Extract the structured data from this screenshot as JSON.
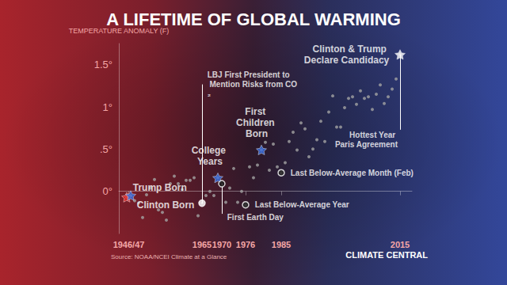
{
  "chart_data": {
    "type": "scatter",
    "title": "A LIFETIME OF GLOBAL WARMING",
    "y_label": "TEMPERATURE ANOMALY (F)",
    "source": "Source: NOAA/NCEI Climate at a Glance",
    "brand": "CLIMATE CENTRAL",
    "color": "#a3a3a3",
    "marker": "circle",
    "grid": false,
    "x": [
      1946,
      1947,
      1948,
      1949,
      1950,
      1951,
      1952,
      1953,
      1954,
      1955,
      1956,
      1957,
      1958,
      1959,
      1960,
      1961,
      1962,
      1963,
      1964,
      1965,
      1966,
      1967,
      1968,
      1969,
      1970,
      1971,
      1972,
      1973,
      1974,
      1975,
      1976,
      1977,
      1978,
      1979,
      1980,
      1981,
      1982,
      1983,
      1984,
      1985,
      1986,
      1987,
      1988,
      1989,
      1990,
      1991,
      1992,
      1993,
      1994,
      1995,
      1996,
      1997,
      1998,
      1999,
      2000,
      2001,
      2002,
      2003,
      2004,
      2005,
      2006,
      2007,
      2008,
      2009,
      2010,
      2011,
      2012,
      2013,
      2014,
      2015
    ],
    "values": [
      -0.07,
      -0.05,
      -0.11,
      -0.14,
      -0.31,
      -0.04,
      0.04,
      0.14,
      -0.22,
      -0.25,
      -0.34,
      0.09,
      0.18,
      0.09,
      0.02,
      0.13,
      0.13,
      0.16,
      -0.29,
      -0.14,
      -0.05,
      0,
      -0.05,
      0.16,
      0.09,
      -0.13,
      0.04,
      0.27,
      -0.13,
      0,
      -0.16,
      0.29,
      0.16,
      0.31,
      0.49,
      0.58,
      0.25,
      0.56,
      0.29,
      0.22,
      0.34,
      0.59,
      0.7,
      0.49,
      0.81,
      0.74,
      0.41,
      0.5,
      0.61,
      0.83,
      0.59,
      0.94,
      1.13,
      0.76,
      0.76,
      0.99,
      1.1,
      1.12,
      1.03,
      1.19,
      1.1,
      1.12,
      0.97,
      1.15,
      1.26,
      1.04,
      1.12,
      1.21,
      1.33,
      1.62
    ],
    "xlim": [
      1944,
      2018
    ],
    "xticks": [
      {
        "value": 1946.5,
        "label": "1946/47"
      },
      1965,
      1970,
      1976,
      1985,
      2015
    ],
    "ylim": [
      -0.5,
      1.75
    ],
    "yticks": [
      {
        "value": 0,
        "label": "0°"
      },
      {
        "value": 0.5,
        "label": ".5°"
      },
      {
        "value": 1,
        "label": "1°"
      },
      {
        "value": 1.5,
        "label": "1.5°"
      }
    ],
    "annotations": [
      {
        "text": "Trump Born",
        "x": 1946,
        "y": -0.07,
        "marker": "star",
        "color": "#e8312f"
      },
      {
        "text": "Clinton Born",
        "x": 1947,
        "y": -0.05,
        "marker": "star",
        "color": "#3b6fe0"
      },
      {
        "text": "College Years",
        "x": 1969,
        "y": 0.16,
        "marker": "star",
        "color": "#3b6fe0"
      },
      {
        "text": "LBJ First President to Mention Risks from CO₂",
        "x": 1965,
        "y": -0.14,
        "marker": "circle",
        "color": "#ffffff"
      },
      {
        "text": "First Earth Day",
        "x": 1970,
        "y": 0.09,
        "marker": "circle",
        "color": "#111111"
      },
      {
        "text": "Last Below-Average Year",
        "x": 1976,
        "y": -0.16,
        "marker": "circle",
        "color": "#222222"
      },
      {
        "text": "First Children Born",
        "x": 1980,
        "y": 0.49,
        "marker": "star",
        "color": "#3b6fe0"
      },
      {
        "text": "Last Below-Average Month (Feb)",
        "x": 1985,
        "y": 0.22,
        "marker": "circle",
        "color": "#222222"
      },
      {
        "text": "Hottest Year Paris Agreement",
        "x": 2015,
        "y": 1.62,
        "marker": "none",
        "color": "#ffffff"
      },
      {
        "text": "Clinton & Trump Declare Candidacy",
        "x": 2015,
        "y": 1.62,
        "marker": "star",
        "color": "#ffffff"
      }
    ]
  }
}
